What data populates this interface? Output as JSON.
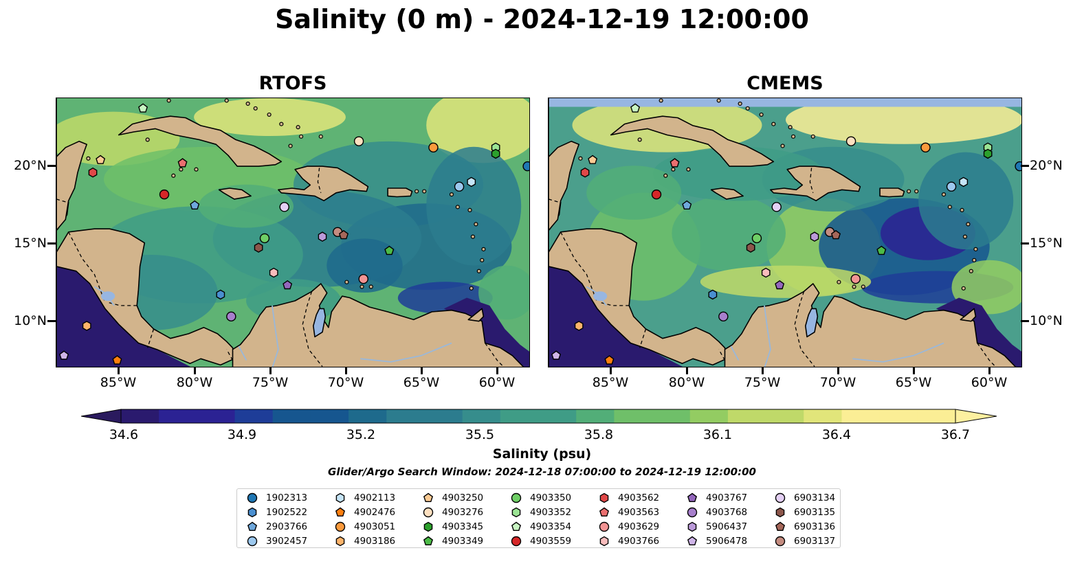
{
  "title": "Salinity (0 m) - 2024-12-19 12:00:00",
  "panels": [
    {
      "title": "RTOFS"
    },
    {
      "title": "CMEMS"
    }
  ],
  "axes": {
    "lon_ticks": [
      "85°W",
      "80°W",
      "75°W",
      "70°W",
      "65°W",
      "60°W"
    ],
    "lat_ticks": [
      "20°N",
      "15°N",
      "10°N"
    ]
  },
  "colorbar": {
    "label": "Salinity (psu)",
    "ticks": [
      "34.6",
      "34.9",
      "35.2",
      "35.5",
      "35.8",
      "36.1",
      "36.4",
      "36.7"
    ],
    "min": 34.6,
    "max": 36.7,
    "colormap": "haline",
    "extend": "both"
  },
  "search_window": "Glider/Argo Search Window: 2024-12-18 07:00:00 to 2024-12-19 12:00:00",
  "colors": {
    "land": "#d2b48c",
    "lakes": "#97b6e1",
    "low_salinity": "#2a1a6e",
    "mid_salinity": "#2c7c8e",
    "high_salinity": "#fbee95"
  },
  "legend": [
    {
      "id": "1902313",
      "marker": "circle",
      "color": "#1f77b4"
    },
    {
      "id": "1902522",
      "marker": "hexagon",
      "color": "#4a8fd0"
    },
    {
      "id": "2903766",
      "marker": "pentagon",
      "color": "#6fa8dc"
    },
    {
      "id": "3902457",
      "marker": "circle",
      "color": "#9cc8ee"
    },
    {
      "id": "4902113",
      "marker": "hexagon",
      "color": "#c6e5f8"
    },
    {
      "id": "4902476",
      "marker": "pentagon",
      "color": "#ff7f0e"
    },
    {
      "id": "4903051",
      "marker": "circle",
      "color": "#fb9a3c"
    },
    {
      "id": "4903186",
      "marker": "hexagon",
      "color": "#fdb46b"
    },
    {
      "id": "4903250",
      "marker": "pentagon",
      "color": "#fccb94"
    },
    {
      "id": "4903276",
      "marker": "circle",
      "color": "#fde0c0"
    },
    {
      "id": "4903345",
      "marker": "hexagon",
      "color": "#2ca02c"
    },
    {
      "id": "4903349",
      "marker": "pentagon",
      "color": "#4cbb47"
    },
    {
      "id": "4903350",
      "marker": "circle",
      "color": "#6fcf66"
    },
    {
      "id": "4903352",
      "marker": "hexagon",
      "color": "#9be494"
    },
    {
      "id": "4903354",
      "marker": "pentagon",
      "color": "#c8f5c2"
    },
    {
      "id": "4903559",
      "marker": "circle",
      "color": "#d62728"
    },
    {
      "id": "4903562",
      "marker": "hexagon",
      "color": "#e04848"
    },
    {
      "id": "4903563",
      "marker": "pentagon",
      "color": "#eb6f6f"
    },
    {
      "id": "4903629",
      "marker": "circle",
      "color": "#f29494"
    },
    {
      "id": "4903766",
      "marker": "hexagon",
      "color": "#f9bcbc"
    },
    {
      "id": "4903767",
      "marker": "pentagon",
      "color": "#9467bd"
    },
    {
      "id": "4903768",
      "marker": "circle",
      "color": "#a77fcc"
    },
    {
      "id": "5906437",
      "marker": "hexagon",
      "color": "#bb9ad9"
    },
    {
      "id": "5906478",
      "marker": "pentagon",
      "color": "#cfb5e8"
    },
    {
      "id": "6903134",
      "marker": "circle",
      "color": "#e4d0f5"
    },
    {
      "id": "6903135",
      "marker": "hexagon",
      "color": "#8c564b"
    },
    {
      "id": "6903136",
      "marker": "pentagon",
      "color": "#a5675a"
    },
    {
      "id": "6903137",
      "marker": "circle",
      "color": "#c48c80"
    }
  ],
  "floats": [
    {
      "id": "1902313",
      "lon": -58.0,
      "lat": 19.9
    },
    {
      "id": "3902457",
      "lon": -62.5,
      "lat": 18.6
    },
    {
      "id": "4902113",
      "lon": -61.7,
      "lat": 18.9
    },
    {
      "id": "4903276",
      "lon": -69.1,
      "lat": 21.5
    },
    {
      "id": "4903051",
      "lon": -64.2,
      "lat": 21.1
    },
    {
      "id": "4903352",
      "lon": -60.1,
      "lat": 21.1
    },
    {
      "id": "4903345",
      "lon": -60.1,
      "lat": 20.7
    },
    {
      "id": "4903354",
      "lon": -83.3,
      "lat": 23.6
    },
    {
      "id": "4903250",
      "lon": -86.1,
      "lat": 20.3
    },
    {
      "id": "4903562",
      "lon": -86.6,
      "lat": 19.5
    },
    {
      "id": "4903563",
      "lon": -80.7,
      "lat": 20.1
    },
    {
      "id": "4903559",
      "lon": -81.9,
      "lat": 18.1
    },
    {
      "id": "2903766",
      "lon": -79.9,
      "lat": 17.4
    },
    {
      "id": "6903134",
      "lon": -74.0,
      "lat": 17.3
    },
    {
      "id": "6903137",
      "lon": -70.5,
      "lat": 15.7
    },
    {
      "id": "6903136",
      "lon": -70.1,
      "lat": 15.5
    },
    {
      "id": "5906437",
      "lon": -71.5,
      "lat": 15.4
    },
    {
      "id": "4903350",
      "lon": -75.3,
      "lat": 15.3
    },
    {
      "id": "6903135",
      "lon": -75.7,
      "lat": 14.7
    },
    {
      "id": "4903349",
      "lon": -67.1,
      "lat": 14.5
    },
    {
      "id": "4903766",
      "lon": -74.7,
      "lat": 13.1
    },
    {
      "id": "4903767",
      "lon": -73.8,
      "lat": 12.3
    },
    {
      "id": "4903629",
      "lon": -68.8,
      "lat": 12.7
    },
    {
      "id": "1902522",
      "lon": -78.2,
      "lat": 11.7
    },
    {
      "id": "4903768",
      "lon": -77.5,
      "lat": 10.3
    },
    {
      "id": "4903186",
      "lon": -87.0,
      "lat": 9.7
    },
    {
      "id": "5906478",
      "lon": -88.5,
      "lat": 7.8
    },
    {
      "id": "4902476",
      "lon": -85.0,
      "lat": 7.5
    }
  ]
}
